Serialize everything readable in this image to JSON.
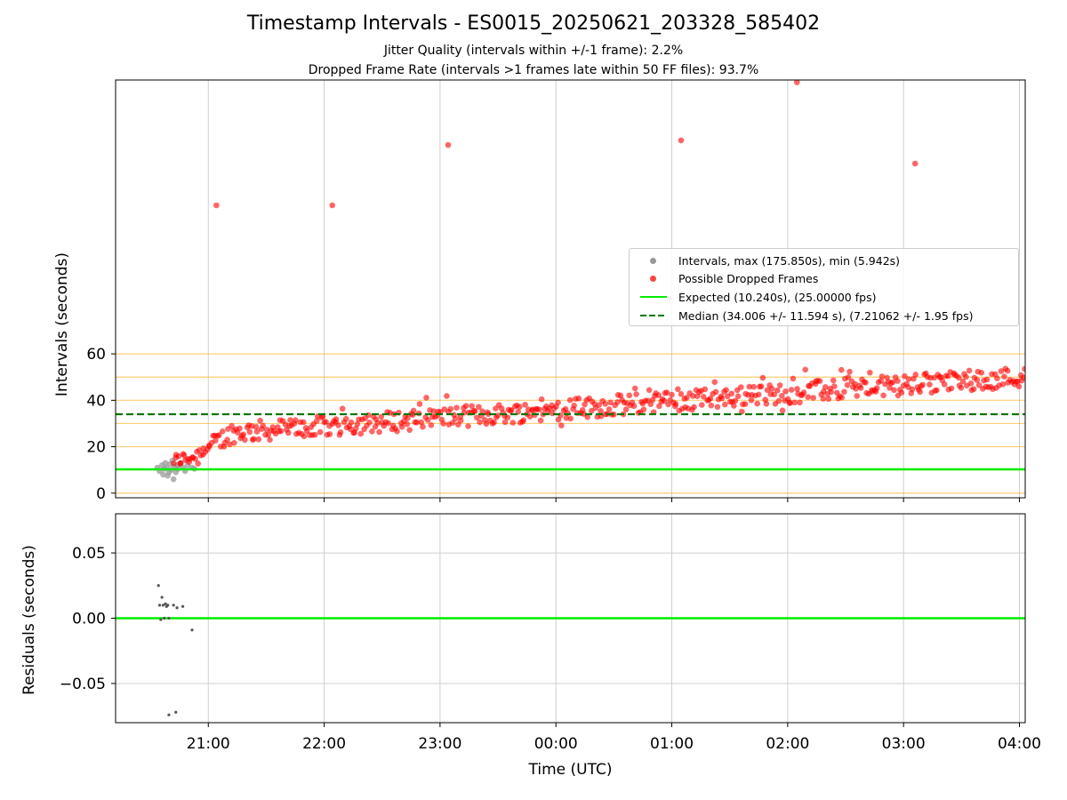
{
  "chart_data": [
    {
      "type": "scatter",
      "title": "Timestamp Intervals - ES0015_20250621_203328_585402",
      "subtitle_lines": [
        "Jitter Quality (intervals within +/-1 frame): 2.2%",
        "Dropped Frame Rate (intervals >1 frames late within 50 FF files): 93.7%"
      ],
      "xlabel": "",
      "ylabel": "Intervals (seconds)",
      "xlim_hours": [
        20.2,
        28.05
      ],
      "ylim": [
        -2,
        178
      ],
      "y_ticks": [
        0,
        20,
        40,
        60
      ],
      "x_ticks": [
        {
          "value": 21,
          "label": "21:00"
        },
        {
          "value": 22,
          "label": "22:00"
        },
        {
          "value": 23,
          "label": "23:00"
        },
        {
          "value": 24,
          "label": "00:00"
        },
        {
          "value": 25,
          "label": "01:00"
        },
        {
          "value": 26,
          "label": "02:00"
        },
        {
          "value": 27,
          "label": "03:00"
        },
        {
          "value": 28,
          "label": "04:00"
        }
      ],
      "grid": "vertical",
      "orange_reference_lines": [
        0,
        10,
        20,
        30,
        40,
        50,
        60
      ],
      "legend": {
        "placement": "center-right",
        "entries": [
          {
            "label": "Intervals, max (175.850s), min (5.942s)",
            "color": "#999999",
            "marker": "circle"
          },
          {
            "label": "Possible Dropped Frames",
            "color": "#ff0000",
            "marker": "circle"
          },
          {
            "label": "Expected (10.240s), (25.00000 fps)",
            "color": "#00ee00",
            "marker": "solid-line"
          },
          {
            "label": "Median (34.006 +/- 11.594 s), (7.21062 +/- 1.95 fps)",
            "color": "#007700",
            "marker": "dashed-line"
          }
        ]
      },
      "expected_interval": 10.24,
      "median_interval": 34.006,
      "series": [
        {
          "name": "Intervals, max (175.850s), min (5.942s)",
          "color": "#999999",
          "points": [
            [
              20.56,
              11
            ],
            [
              20.58,
              9.5
            ],
            [
              20.6,
              12
            ],
            [
              20.61,
              8
            ],
            [
              20.62,
              10.5
            ],
            [
              20.63,
              13
            ],
            [
              20.64,
              11
            ],
            [
              20.65,
              7.5
            ],
            [
              20.66,
              9
            ],
            [
              20.67,
              12.5
            ],
            [
              20.68,
              10
            ],
            [
              20.69,
              14
            ],
            [
              20.7,
              6
            ],
            [
              20.71,
              11.5
            ],
            [
              20.72,
              9
            ],
            [
              20.73,
              12
            ],
            [
              20.74,
              10.5
            ],
            [
              20.76,
              13
            ],
            [
              20.78,
              11
            ],
            [
              20.8,
              9.5
            ],
            [
              20.82,
              12
            ],
            [
              20.86,
              11
            ],
            [
              20.88,
              10.5
            ]
          ]
        },
        {
          "name": "Possible Dropped Frames",
          "color": "#ff0000",
          "formula_note": "regular samples follow 26 + 3.6*(t-21.5) + deterministic scatter; outliers listed",
          "outliers": [
            [
              21.07,
              124
            ],
            [
              22.07,
              124
            ],
            [
              23.07,
              150
            ],
            [
              25.08,
              152
            ],
            [
              26.08,
              177
            ],
            [
              27.1,
              142
            ]
          ],
          "start_hour": 20.7,
          "end_hour": 28.05,
          "count": 560
        }
      ]
    },
    {
      "type": "scatter",
      "title": "",
      "xlabel": "Time (UTC)",
      "ylabel": "Residuals (seconds)",
      "xlim_hours": [
        20.2,
        28.05
      ],
      "ylim": [
        -0.08,
        0.08
      ],
      "y_ticks": [
        {
          "value": 0.05,
          "label": "0.05"
        },
        {
          "value": 0,
          "label": "0.00"
        },
        {
          "value": -0.05,
          "label": "−0.05"
        }
      ],
      "grid": "both",
      "zero_line_color": "#00ee00",
      "series": [
        {
          "name": "",
          "color": "#555555",
          "points": [
            [
              20.57,
              0.025
            ],
            [
              20.58,
              0.01
            ],
            [
              20.59,
              -0.001
            ],
            [
              20.6,
              0.016
            ],
            [
              20.61,
              0.01
            ],
            [
              20.62,
              0.0
            ],
            [
              20.63,
              0.011
            ],
            [
              20.64,
              0.009
            ],
            [
              20.65,
              0.01
            ],
            [
              20.66,
              0.0
            ],
            [
              20.66,
              -0.074
            ],
            [
              20.7,
              0.01
            ],
            [
              20.72,
              -0.072
            ],
            [
              20.73,
              0.008
            ],
            [
              20.78,
              0.009
            ],
            [
              20.86,
              -0.009
            ]
          ]
        }
      ]
    }
  ]
}
